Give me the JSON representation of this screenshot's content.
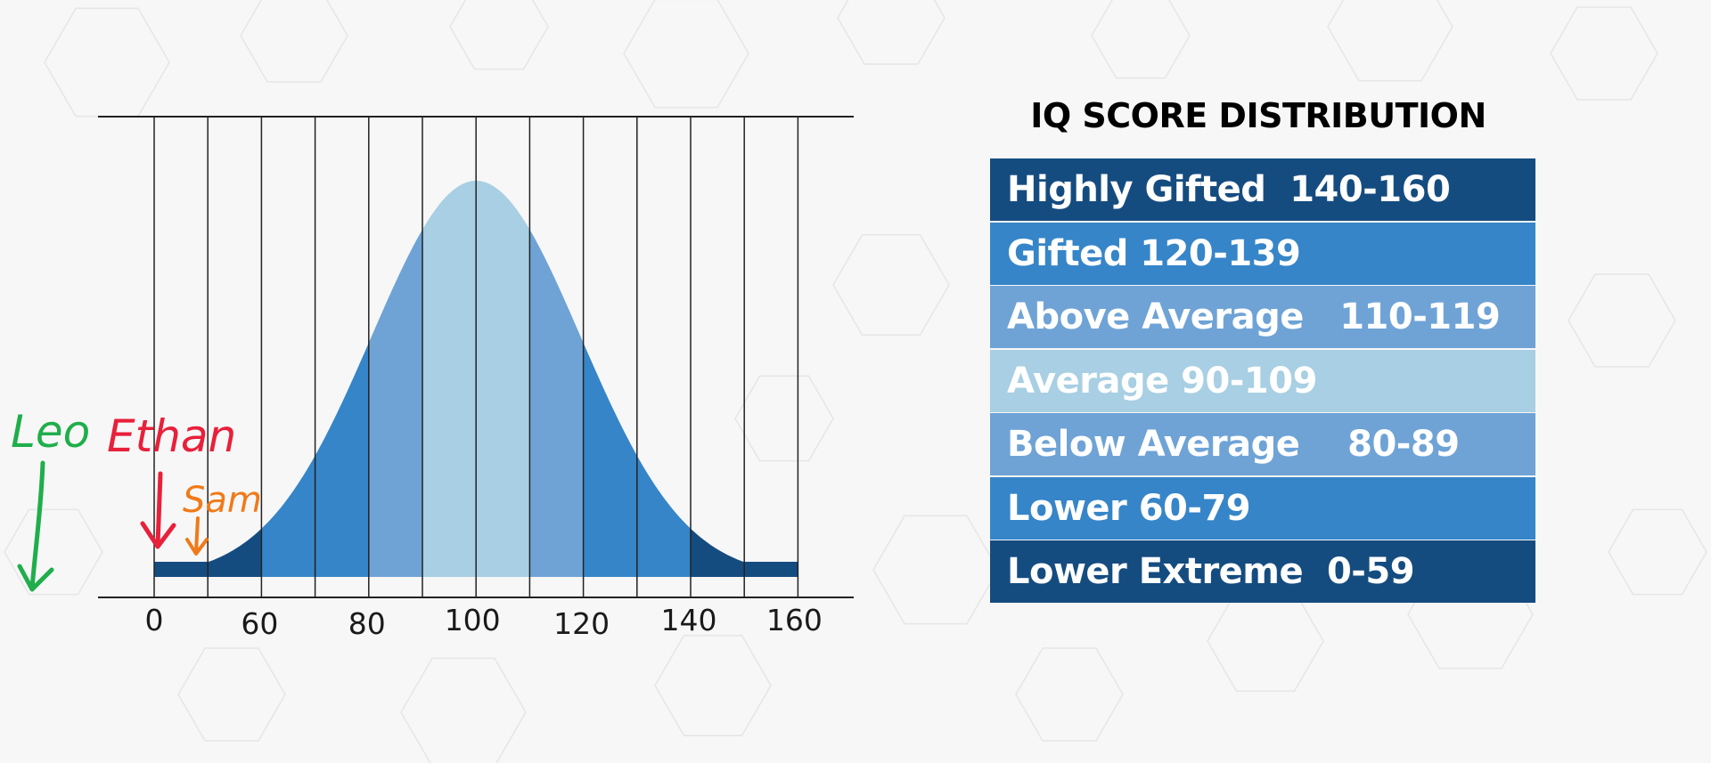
{
  "title": "IQ SCORE DISTRIBUTION",
  "colors": {
    "extreme": "#154c80",
    "outer": "#3685c8",
    "mid": "#6fa3d6",
    "center": "#a8cfe3",
    "grid": "#222222",
    "leo": "#1fae4b",
    "ethan": "#e8203a",
    "sam": "#f07a1a"
  },
  "legend": [
    {
      "label": "Highly Gifted  140-160",
      "color": "#154c80"
    },
    {
      "label": "Gifted 120-139",
      "color": "#3685c8"
    },
    {
      "label": "Above Average   110-119",
      "color": "#6fa3d6"
    },
    {
      "label": "Average 90-109",
      "color": "#a8cfe3"
    },
    {
      "label": "Below Average    80-89",
      "color": "#6fa3d6"
    },
    {
      "label": "Lower 60-79",
      "color": "#3685c8"
    },
    {
      "label": "Lower Extreme  0-59",
      "color": "#154c80"
    }
  ],
  "axis": {
    "tick_labels": [
      "0",
      "60",
      "80",
      "100",
      "120",
      "140",
      "160"
    ]
  },
  "annotations": {
    "leo": "Leo",
    "ethan": "Ethan",
    "sam": "Sam"
  }
}
